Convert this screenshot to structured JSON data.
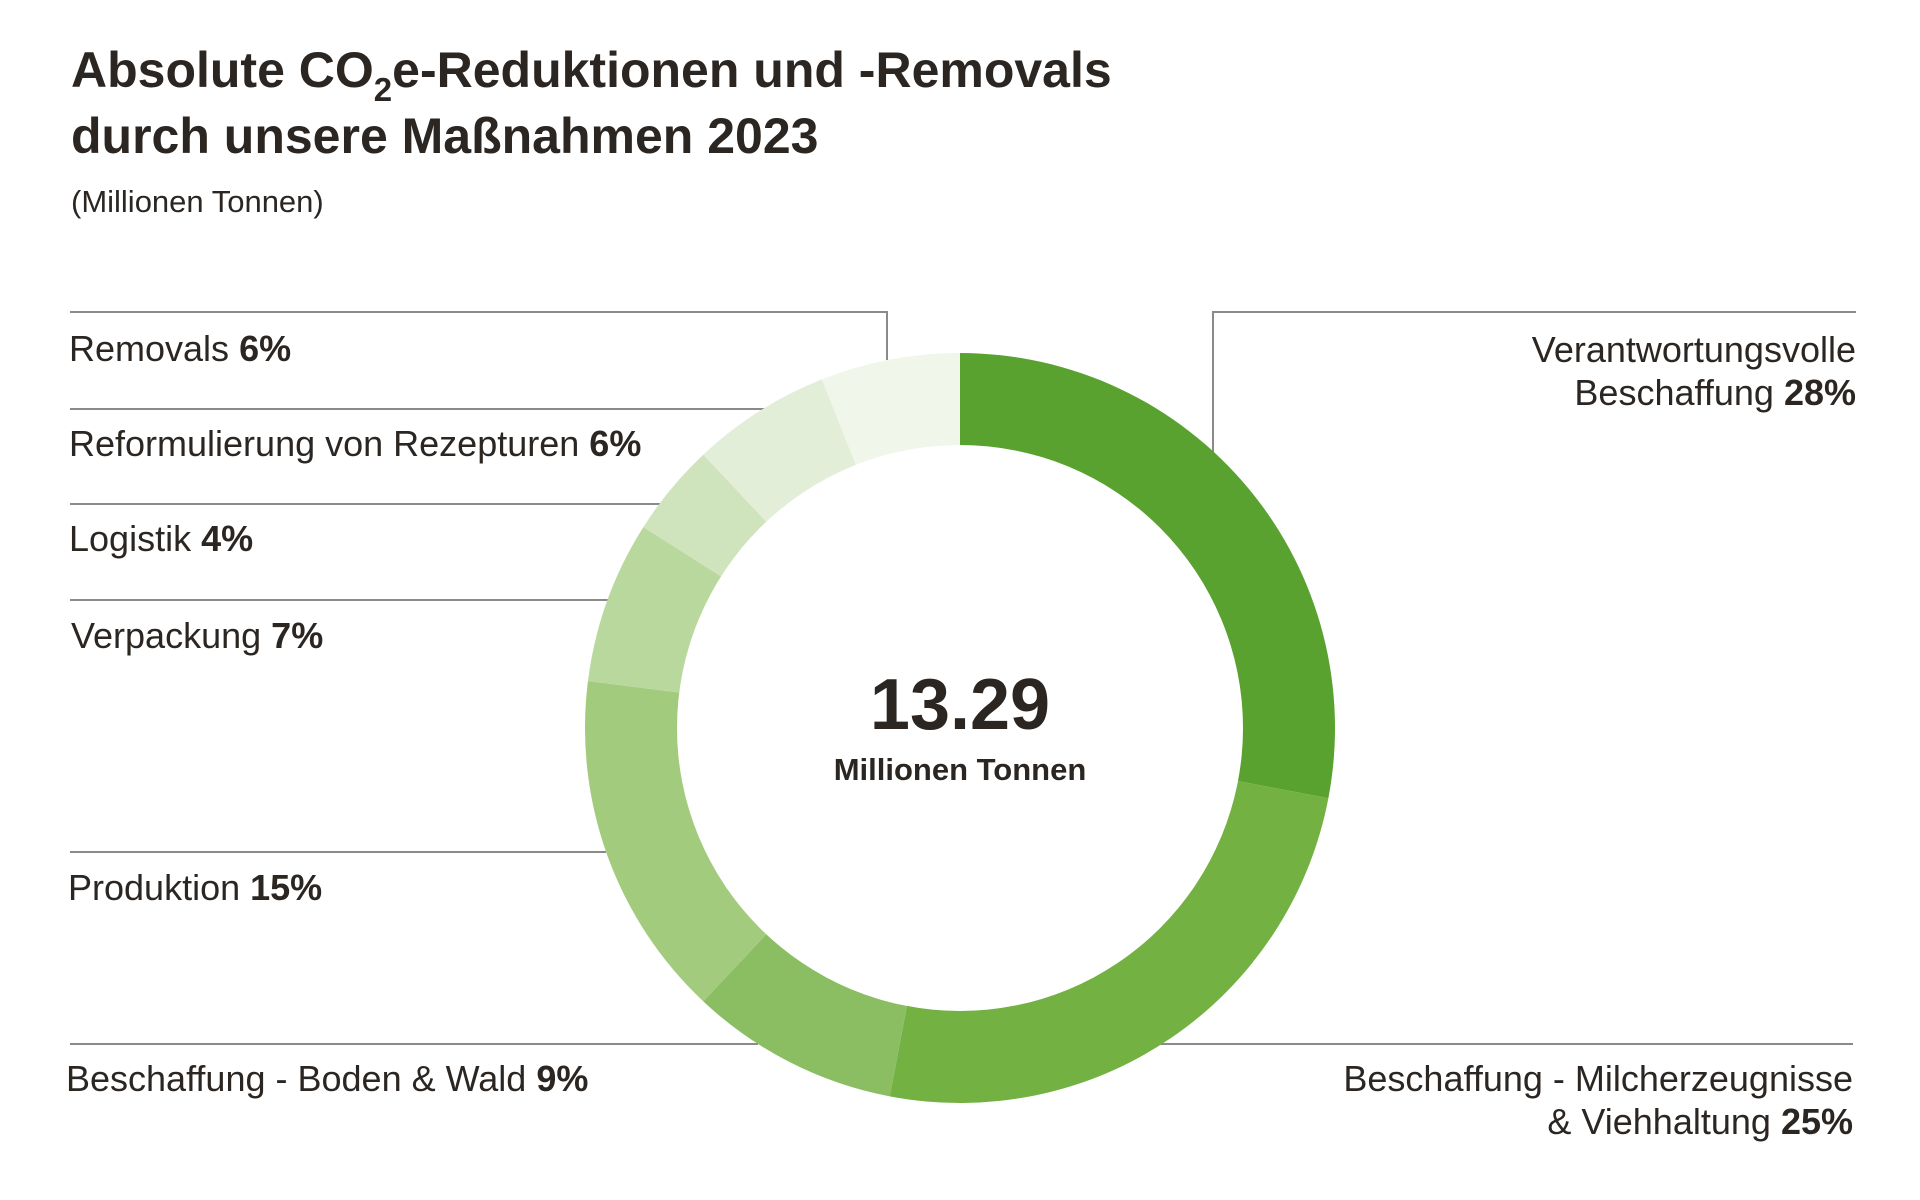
{
  "title": {
    "line1_prefix": "Absolute CO",
    "line1_sub": "2",
    "line1_suffix": "e-Reduktionen und -Removals",
    "line2": "durch unsere Maßnahmen 2023"
  },
  "unit": "(Millionen Tonnen)",
  "center": {
    "value": "13.29",
    "unit": "Millionen Tonnen"
  },
  "chart_data": {
    "type": "pie",
    "variant": "donut",
    "total": 13.29,
    "total_label": "Millionen Tonnen",
    "slices": [
      {
        "name": "Verantwortungsvolle Beschaffung",
        "line1": "Verantwortungsvolle",
        "line2": "Beschaffung",
        "percent_label": "28%",
        "value": 28,
        "color": "#5aa22f"
      },
      {
        "name": "Beschaffung - Milcherzeugnisse & Viehhaltung",
        "line1": "Beschaffung - Milcherzeugnisse",
        "line2": "& Viehhaltung",
        "percent_label": "25%",
        "value": 25,
        "color": "#73b142"
      },
      {
        "name": "Beschaffung - Boden & Wald",
        "line1": "Beschaffung - Boden & Wald",
        "line2": "",
        "percent_label": "9%",
        "value": 9,
        "color": "#8bbe62"
      },
      {
        "name": "Produktion",
        "line1": "Produktion",
        "line2": "",
        "percent_label": "15%",
        "value": 15,
        "color": "#a2cb7e"
      },
      {
        "name": "Verpackung",
        "line1": "Verpackung",
        "line2": "",
        "percent_label": "7%",
        "value": 7,
        "color": "#b9d89e"
      },
      {
        "name": "Logistik",
        "line1": "Logistik",
        "line2": "",
        "percent_label": "4%",
        "value": 4,
        "color": "#cfe4bd"
      },
      {
        "name": "Reformulierung von Rezepturen",
        "line1": "Reformulierung von Rezepturen",
        "line2": "",
        "percent_label": "6%",
        "value": 6,
        "color": "#e2eed7"
      },
      {
        "name": "Removals",
        "line1": "Removals",
        "line2": "",
        "percent_label": "6%",
        "value": 6,
        "color": "#f0f6ea"
      }
    ],
    "start_angle": "12 o'clock",
    "direction": "clockwise",
    "legend": "leader-line labels"
  }
}
